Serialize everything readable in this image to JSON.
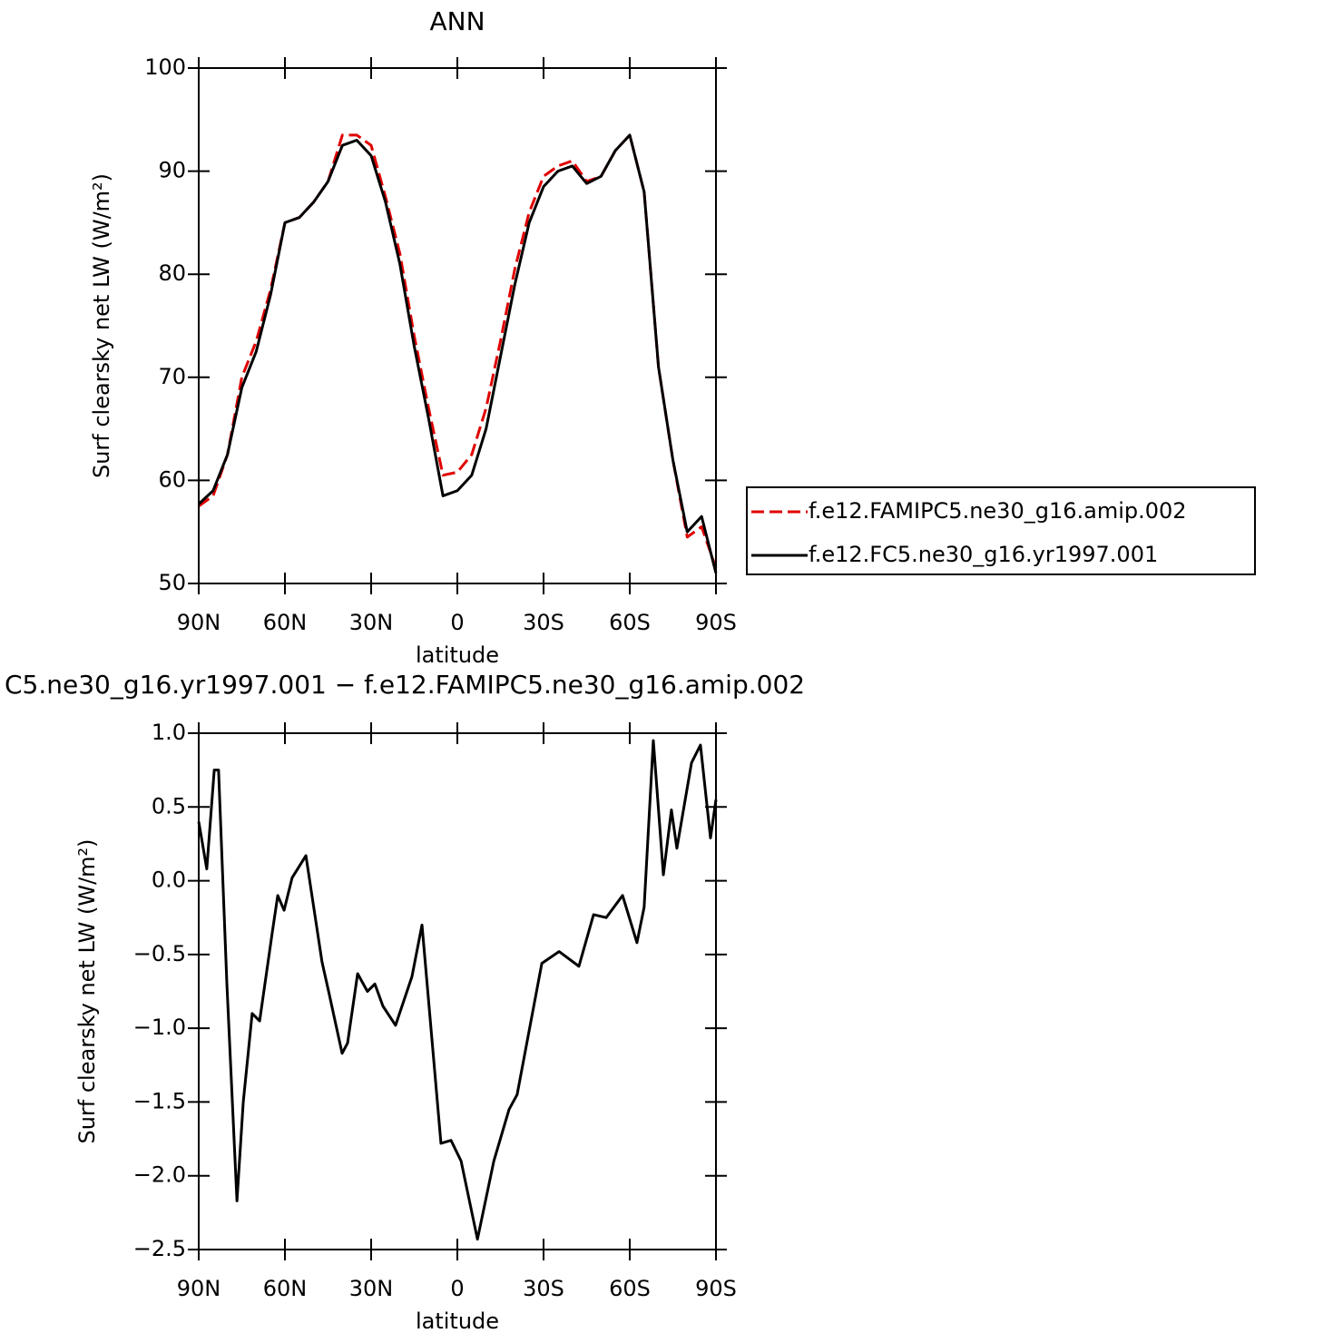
{
  "chart_data": [
    {
      "type": "line",
      "title": "ANN",
      "xlabel": "latitude",
      "ylabel": "Surf clearsky net LW (W/m²)",
      "x": [
        90,
        85,
        80,
        75,
        70,
        65,
        60,
        55,
        50,
        45,
        40,
        35,
        30,
        25,
        20,
        15,
        10,
        5,
        0,
        -5,
        -10,
        -15,
        -20,
        -25,
        -30,
        -35,
        -40,
        -45,
        -50,
        -55,
        -60,
        -65,
        -70,
        -75,
        -80,
        -85,
        -90
      ],
      "series": [
        {
          "name": "f.e12.FAMIPC5.ne30_g16.amip.002",
          "color": "#e00000",
          "dashed": true,
          "values": [
            57.5,
            58.5,
            62.5,
            70,
            73.5,
            78.5,
            85,
            85.5,
            87,
            89,
            93.5,
            93.5,
            92.5,
            87.5,
            82,
            74,
            67,
            60.5,
            60.8,
            62.5,
            67,
            73.5,
            80.5,
            86,
            89.5,
            90.5,
            91,
            89,
            89.5,
            92,
            93.5,
            88,
            71,
            62,
            54.5,
            55.5,
            51.5
          ]
        },
        {
          "name": "f.e12.FC5.ne30_g16.yr1997.001",
          "color": "#000000",
          "dashed": false,
          "values": [
            57.7,
            59,
            62.5,
            69,
            72.5,
            78,
            85,
            85.5,
            87,
            89,
            92.5,
            93,
            91.5,
            87,
            81,
            73,
            66,
            58.5,
            59,
            60.5,
            65,
            72,
            79,
            85,
            88.5,
            90,
            90.5,
            88.8,
            89.5,
            92,
            93.5,
            88,
            71,
            62,
            55,
            56.5,
            51
          ]
        }
      ],
      "xlim": [
        90,
        -90
      ],
      "xticks": [
        {
          "value": 90,
          "label": "90N"
        },
        {
          "value": 60,
          "label": "60N"
        },
        {
          "value": 30,
          "label": "30N"
        },
        0,
        {
          "value": -30,
          "label": "30S"
        },
        {
          "value": -60,
          "label": "60S"
        },
        {
          "value": -90,
          "label": "90S"
        }
      ],
      "ylim": [
        50,
        100
      ],
      "yticks": [
        50,
        60,
        70,
        80,
        90,
        100
      ],
      "legend": "right"
    },
    {
      "type": "line",
      "title": "C5.ne30_g16.yr1997.001 − f.e12.FAMIPC5.ne30_g16.amip.002",
      "xlabel": "latitude",
      "ylabel": "Surf clearsky net LW (W/m²)",
      "x": [
        90,
        87.2,
        84.6,
        83.1,
        80.2,
        76.7,
        74.5,
        71.4,
        68.8,
        64.4,
        62.5,
        60.3,
        57.5,
        52.7,
        47.1,
        44.8,
        40.1,
        38.2,
        34.7,
        31.3,
        28.7,
        25.9,
        21.5,
        15.8,
        12.3,
        5.7,
        2.2,
        -1.3,
        -7,
        -12.7,
        -18,
        -20.8,
        -29.4,
        -35.4,
        -42.3,
        -47.4,
        -51.8,
        -57.5,
        -62.5,
        -65,
        -68.2,
        -71.7,
        -74.5,
        -76.4,
        -81.5,
        -84.6,
        -88.1,
        -90
      ],
      "series": [
        {
          "color": "#000000",
          "dashed": false,
          "values": [
            0.4,
            0.08,
            0.75,
            0.75,
            -0.7,
            -2.17,
            -1.5,
            -0.9,
            -0.95,
            -0.35,
            -0.1,
            -0.2,
            0.02,
            0.17,
            -0.55,
            -0.75,
            -1.17,
            -1.1,
            -0.63,
            -0.75,
            -0.7,
            -0.85,
            -0.98,
            -0.65,
            -0.3,
            -1.78,
            -1.76,
            -1.9,
            -2.43,
            -1.9,
            -1.55,
            -1.45,
            -0.56,
            -0.48,
            -0.58,
            -0.23,
            -0.25,
            -0.1,
            -0.42,
            -0.18,
            0.95,
            0.04,
            0.48,
            0.22,
            0.8,
            0.92,
            0.29,
            0.55
          ]
        }
      ],
      "xlim": [
        90,
        -90
      ],
      "xticks": [
        {
          "value": 90,
          "label": "90N"
        },
        {
          "value": 60,
          "label": "60N"
        },
        {
          "value": 30,
          "label": "30N"
        },
        0,
        {
          "value": -30,
          "label": "30S"
        },
        {
          "value": -60,
          "label": "60S"
        },
        {
          "value": -90,
          "label": "90S"
        }
      ],
      "ylim": [
        -2.5,
        1
      ],
      "yticks": [
        {
          "value": -2.5,
          "label": "−2.5"
        },
        {
          "value": -2,
          "label": "−2.0"
        },
        {
          "value": -1.5,
          "label": "−1.5"
        },
        {
          "value": -1,
          "label": "−1.0"
        },
        {
          "value": -0.5,
          "label": "−0.5"
        },
        {
          "value": 0,
          "label": "0.0"
        },
        0.5,
        {
          "value": 1,
          "label": "1.0"
        }
      ]
    }
  ]
}
